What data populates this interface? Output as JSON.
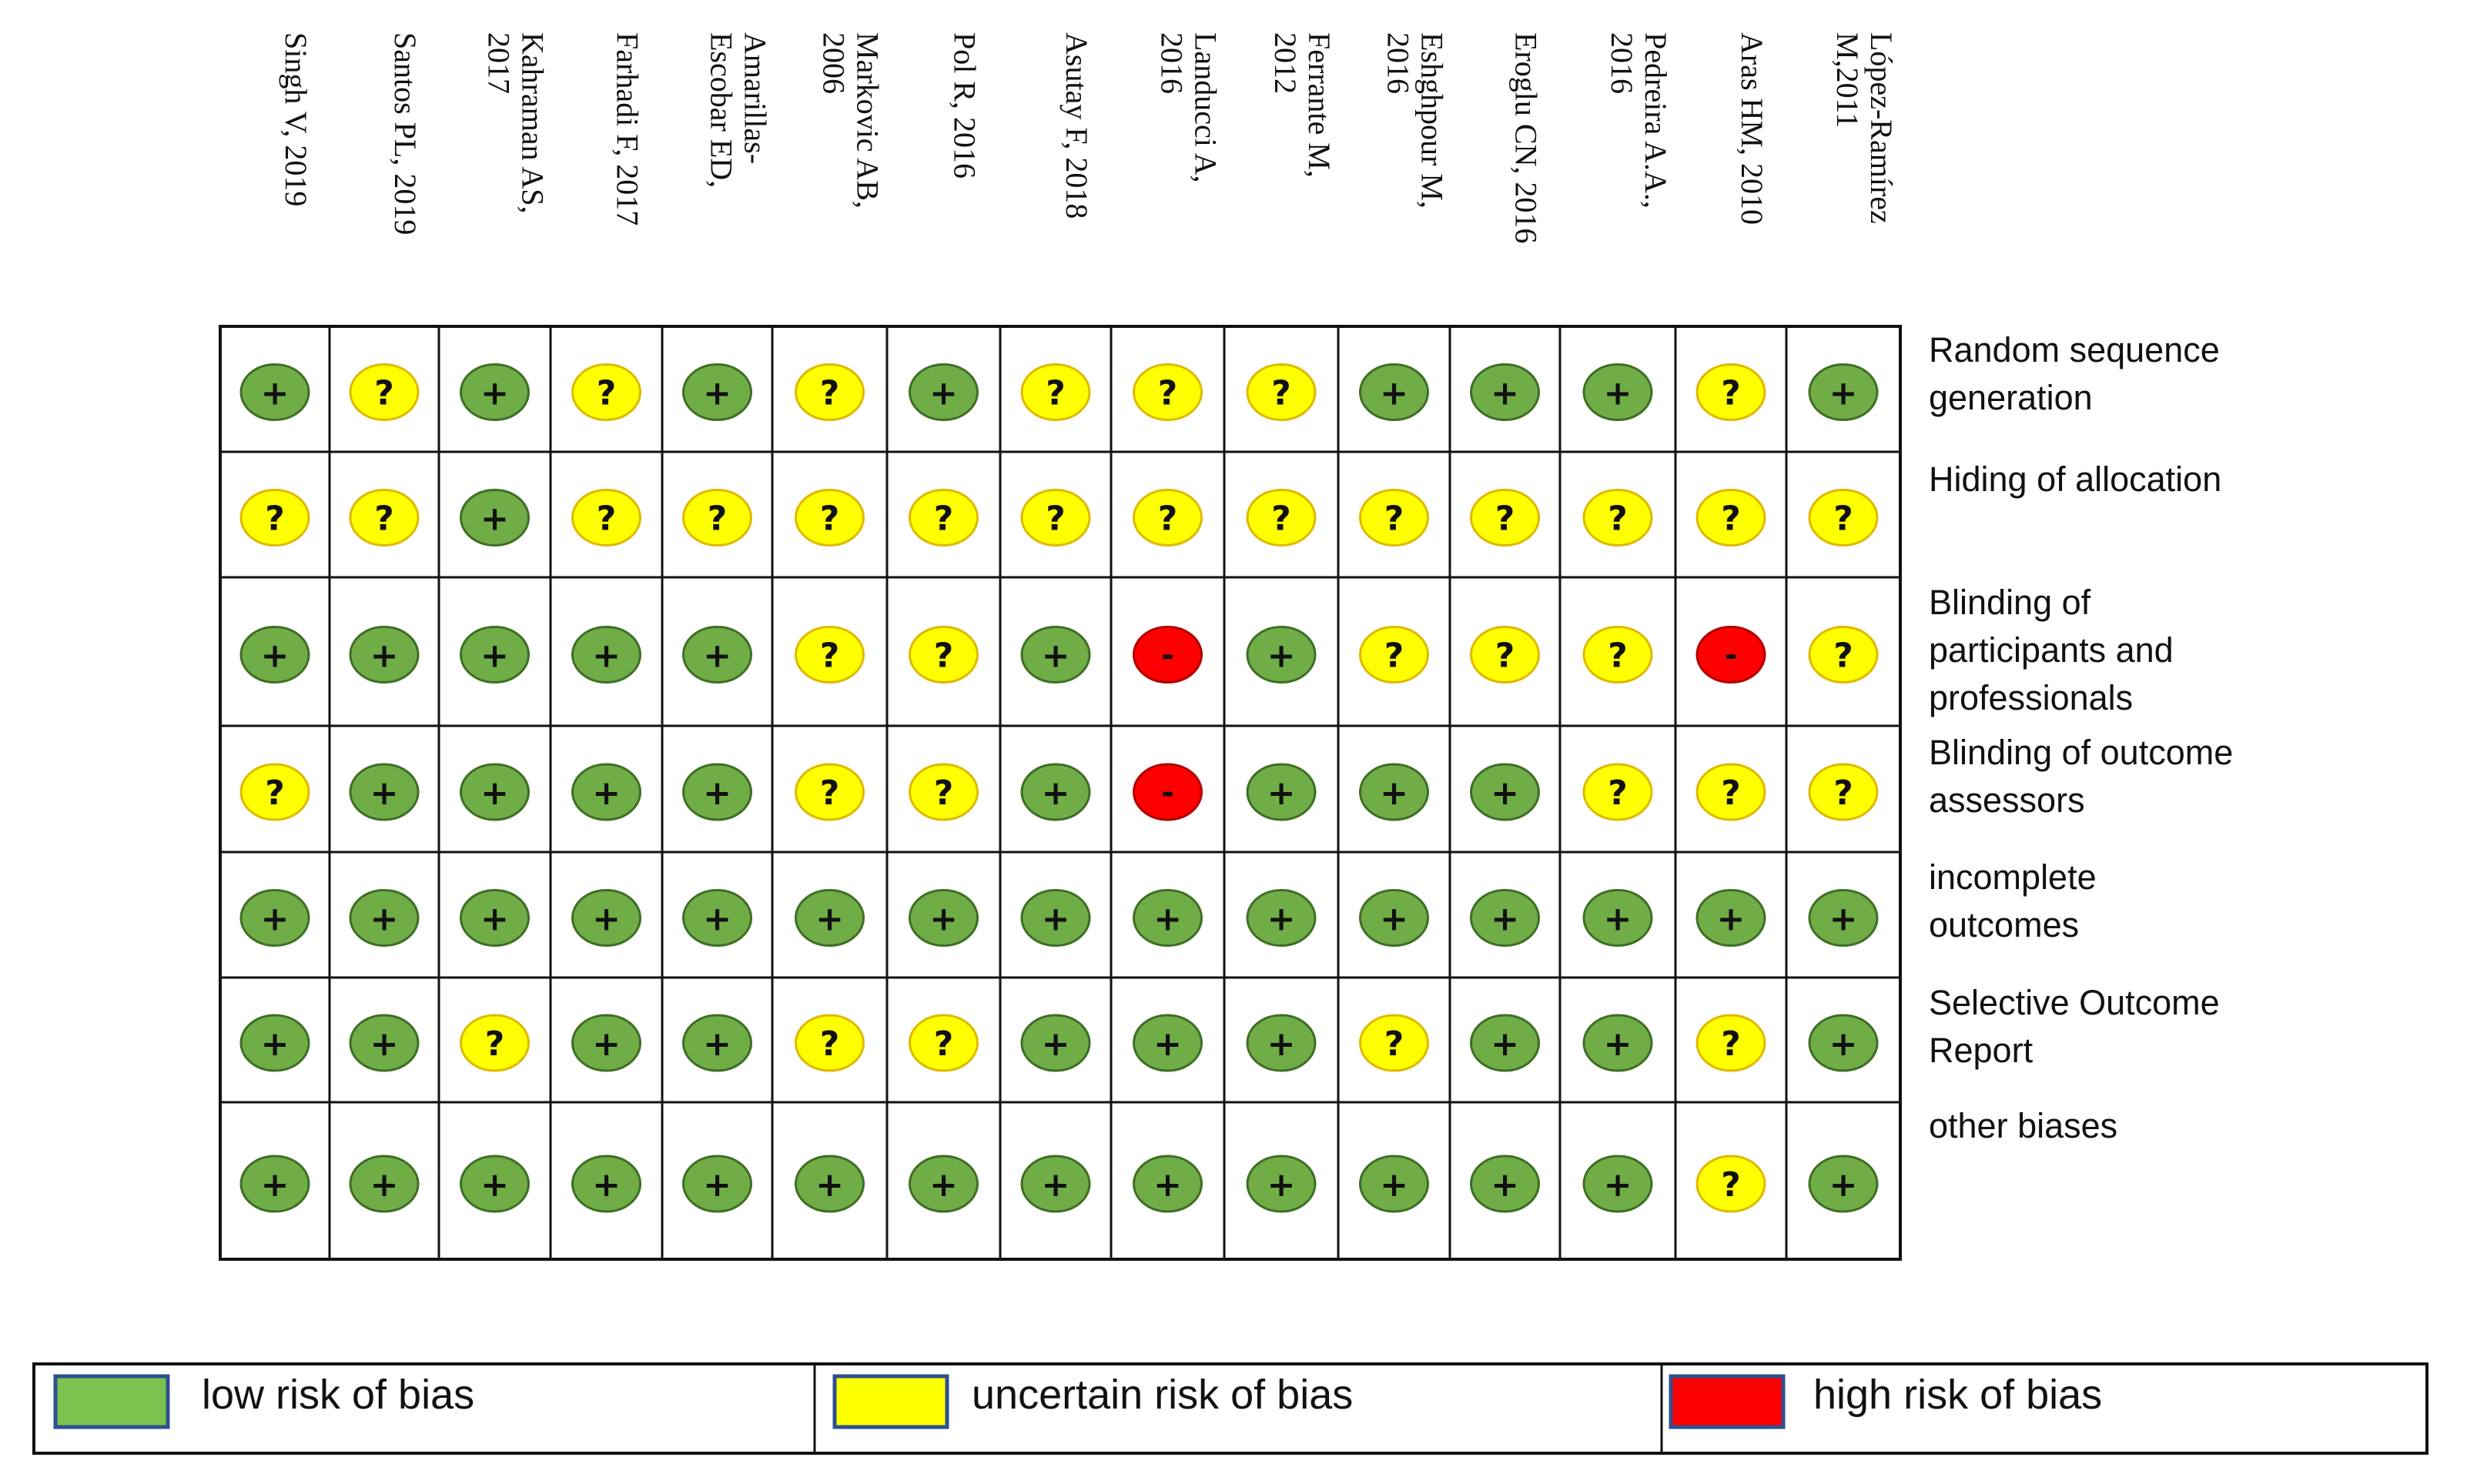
{
  "colors": {
    "low": "#70ad47",
    "low_border": "#3f6e25",
    "uncertain": "#ffff00",
    "uncertain_border": "#e0b800",
    "high": "#ff0000",
    "high_border": "#b00000",
    "legend_low": "#7cc24f",
    "legend_uncertain": "#ffff00",
    "legend_high": "#ff0000"
  },
  "symbols": {
    "low": "+",
    "uncertain": "?",
    "high": "-"
  },
  "studies": [
    [
      "Singh V, 2019"
    ],
    [
      "Santos PL, 2019"
    ],
    [
      "Kahraman AS,",
      "2017"
    ],
    [
      "Farhadi F, 2017"
    ],
    [
      "Amarillas-",
      "Escobar ED,"
    ],
    [
      "Markovic AB,",
      "2006"
    ],
    [
      "Pol R, 2016"
    ],
    [
      "Asutay F, 2018"
    ],
    [
      "Landucci A,",
      "2016"
    ],
    [
      "Ferrante M,",
      "2012"
    ],
    [
      "Eshghpour M,",
      "2016"
    ],
    [
      "Eroglu CN, 2016"
    ],
    [
      "Pedreira A.A.,",
      "2016"
    ],
    [
      "Aras HM, 2010"
    ],
    [
      "López-Ramírez",
      "M,2011"
    ]
  ],
  "domains": [
    [
      "Random sequence",
      "generation"
    ],
    [
      "Hiding of allocation"
    ],
    [
      "Blinding of",
      "participants and",
      "professionals"
    ],
    [
      "Blinding of outcome",
      "assessors"
    ],
    [
      "incomplete",
      "outcomes"
    ],
    [
      "Selective Outcome",
      "Report"
    ],
    [
      "other biases"
    ]
  ],
  "matrix": [
    [
      "low",
      "uncertain",
      "low",
      "uncertain",
      "low",
      "uncertain",
      "low",
      "uncertain",
      "uncertain",
      "uncertain",
      "low",
      "low",
      "low",
      "uncertain",
      "low"
    ],
    [
      "uncertain",
      "uncertain",
      "low",
      "uncertain",
      "uncertain",
      "uncertain",
      "uncertain",
      "uncertain",
      "uncertain",
      "uncertain",
      "uncertain",
      "uncertain",
      "uncertain",
      "uncertain",
      "uncertain"
    ],
    [
      "low",
      "low",
      "low",
      "low",
      "low",
      "uncertain",
      "uncertain",
      "low",
      "high",
      "low",
      "uncertain",
      "uncertain",
      "uncertain",
      "high",
      "uncertain"
    ],
    [
      "uncertain",
      "low",
      "low",
      "low",
      "low",
      "uncertain",
      "uncertain",
      "low",
      "high",
      "low",
      "low",
      "low",
      "uncertain",
      "uncertain",
      "uncertain"
    ],
    [
      "low",
      "low",
      "low",
      "low",
      "low",
      "low",
      "low",
      "low",
      "low",
      "low",
      "low",
      "low",
      "low",
      "low",
      "low"
    ],
    [
      "low",
      "low",
      "uncertain",
      "low",
      "low",
      "uncertain",
      "uncertain",
      "low",
      "low",
      "low",
      "uncertain",
      "low",
      "low",
      "uncertain",
      "low"
    ],
    [
      "low",
      "low",
      "low",
      "low",
      "low",
      "low",
      "low",
      "low",
      "low",
      "low",
      "low",
      "low",
      "low",
      "uncertain",
      "low"
    ]
  ],
  "legend": [
    {
      "key": "low",
      "label": "low risk of bias"
    },
    {
      "key": "uncertain",
      "label": "uncertain risk of bias"
    },
    {
      "key": "high",
      "label": "high risk of bias"
    }
  ]
}
